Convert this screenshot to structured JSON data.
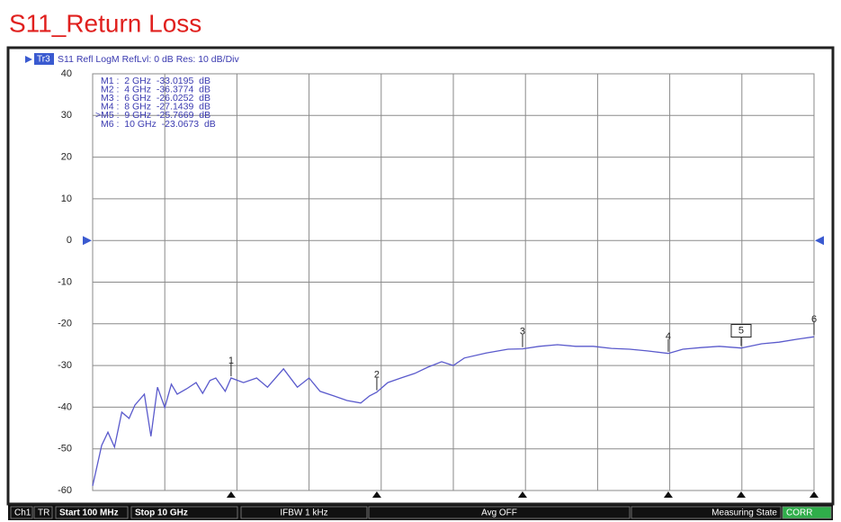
{
  "chart_data": {
    "type": "line",
    "title": "S11_Return Loss",
    "trace_id": "Tr3",
    "header": "S11 Refl LogM RefLvl: 0 dB Res: 10 dB/Div",
    "color": "#5a5acc",
    "ref_level": 0,
    "xlim": [
      0.1,
      10
    ],
    "x_divisions": 10,
    "ylim": [
      -60,
      40
    ],
    "yticks": [
      40,
      30,
      20,
      10,
      0,
      -10,
      -20,
      -30,
      -40,
      -50,
      -60
    ],
    "grid": true,
    "x": [
      0.1,
      0.224,
      0.31,
      0.4,
      0.5,
      0.6,
      0.68,
      0.81,
      0.9,
      0.99,
      1.09,
      1.18,
      1.26,
      1.39,
      1.52,
      1.61,
      1.71,
      1.79,
      1.92,
      2.0,
      2.17,
      2.35,
      2.5,
      2.72,
      2.91,
      3.07,
      3.22,
      3.41,
      3.59,
      3.78,
      3.9,
      4.0,
      4.15,
      4.33,
      4.52,
      4.7,
      4.89,
      5.05,
      5.2,
      5.5,
      5.8,
      6.0,
      6.23,
      6.48,
      6.73,
      6.97,
      7.22,
      7.47,
      7.71,
      8.0,
      8.2,
      8.45,
      8.7,
      9.0,
      9.28,
      9.52,
      9.77,
      10.0
    ],
    "values": [
      -58.9,
      -49.2,
      -46,
      -49.6,
      -41.2,
      -42.7,
      -39.5,
      -36.9,
      -47,
      -35.2,
      -40.1,
      -34.5,
      -36.9,
      -35.6,
      -34.1,
      -36.7,
      -33.6,
      -33,
      -36.2,
      -33.0,
      -34.1,
      -33,
      -35.2,
      -30.8,
      -35.2,
      -33,
      -36.2,
      -37.3,
      -38.4,
      -39,
      -37.3,
      -36.4,
      -34.1,
      -33,
      -31.9,
      -30.4,
      -29.1,
      -30,
      -28.2,
      -27,
      -26.1,
      -26.0,
      -25.4,
      -25,
      -25.4,
      -25.4,
      -25.9,
      -26.1,
      -26.5,
      -27.1,
      -26.1,
      -25.7,
      -25.4,
      -25.8,
      -24.8,
      -24.4,
      -23.7,
      -23.1
    ],
    "markers": [
      {
        "label": "1",
        "x": 2,
        "value": -33.0195,
        "readout": "M1 :  2 GHz  -33.0195  dB"
      },
      {
        "label": "2",
        "x": 4,
        "value": -36.3774,
        "readout": "M2 :  4 GHz  -36.3774  dB"
      },
      {
        "label": "3",
        "x": 6,
        "value": -26.0252,
        "readout": "M3 :  6 GHz  -26.0252  dB"
      },
      {
        "label": "4",
        "x": 8,
        "value": -27.1439,
        "readout": "M4 :  8 GHz  -27.1439  dB"
      },
      {
        "label": "5",
        "x": 9,
        "value": -25.7669,
        "readout": ">M5 :  9 GHz  -25.7669  dB",
        "active": true
      },
      {
        "label": "6",
        "x": 10,
        "value": -23.0673,
        "readout": "M6 :  10 GHz  -23.0673  dB"
      }
    ],
    "status_bar": {
      "channel": "Ch1",
      "trace": "TR",
      "start": "Start 100 MHz",
      "stop": "Stop 10 GHz",
      "ifbw": "IFBW 1 kHz",
      "avg": "Avg OFF",
      "state": "Measuring State",
      "corr": "CORR"
    }
  }
}
